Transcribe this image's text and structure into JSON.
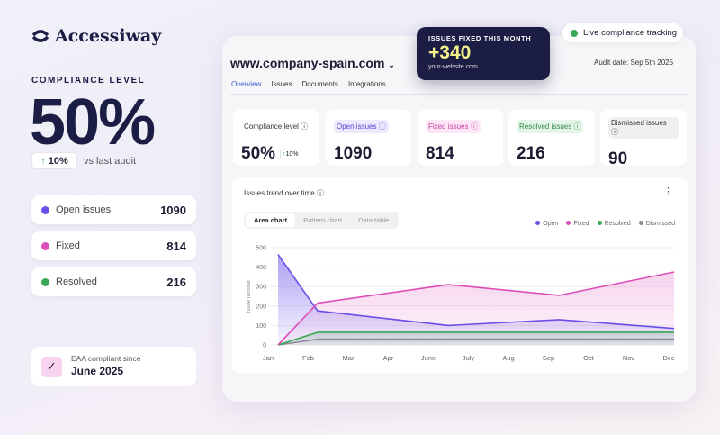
{
  "brand": {
    "name": "Accessiway"
  },
  "left": {
    "compliance_label": "COMPLIANCE LEVEL",
    "compliance_value": "50%",
    "delta": "10%",
    "delta_caption": "vs last audit",
    "items": [
      {
        "label": "Open issues",
        "value": "1090",
        "color": "#6a4ee8"
      },
      {
        "label": "Fixed",
        "value": "814",
        "color": "#dd4fb8"
      },
      {
        "label": "Resolved",
        "value": "216",
        "color": "#3aa757"
      }
    ],
    "eaa": {
      "caption": "EAA compliant since",
      "date": "June 2025"
    }
  },
  "highlight": {
    "title": "ISSUES FIXED THIS MONTH",
    "value": "+340",
    "site": "your-website.com"
  },
  "live": {
    "label": "Live compliance tracking"
  },
  "dashboard": {
    "site": "www.company-spain.com",
    "audit_date": "Audit date: Sep 5th 2025",
    "tabs": [
      "Overview",
      "Issues",
      "Documents",
      "Integrations"
    ],
    "stats": [
      {
        "label": "Compliance level",
        "value": "50%",
        "badge": "10%",
        "bg": "transparent",
        "fg": "#333"
      },
      {
        "label": "Open issues",
        "value": "1090",
        "bg": "#eee9fc",
        "fg": "#5b3fd6"
      },
      {
        "label": "Fixed issues",
        "value": "814",
        "bg": "#fde6f6",
        "fg": "#c93ba6"
      },
      {
        "label": "Resolved issues",
        "value": "216",
        "bg": "#e6f5ea",
        "fg": "#2e8a47"
      },
      {
        "label": "Dismissed issues",
        "value": "90",
        "bg": "#f0f0f3",
        "fg": "#333"
      }
    ],
    "chart_title": "Issues trend over time",
    "chart_tabs": [
      "Area chart",
      "Pattern chart",
      "Data table"
    ]
  },
  "chart_data": {
    "type": "area",
    "ylabel": "Issue number",
    "ylim": [
      0,
      500
    ],
    "yticks": [
      "0",
      "100",
      "200",
      "300",
      "400",
      "500"
    ],
    "categories": [
      "Jan",
      "Feb",
      "Mar",
      "Apr",
      "June",
      "July",
      "Aug",
      "Sep",
      "Oct",
      "Nov",
      "Dec"
    ],
    "x": [
      0,
      1,
      4.3,
      7.1,
      10
    ],
    "grid": true,
    "legend": "top-right",
    "series": [
      {
        "name": "Open",
        "color": "#6a4ee8",
        "values": [
          465,
          175,
          100,
          130,
          85
        ]
      },
      {
        "name": "Fixed",
        "color": "#dd4fb8",
        "values": [
          0,
          215,
          310,
          255,
          375
        ]
      },
      {
        "name": "Resolved",
        "color": "#3aa757",
        "values": [
          0,
          65,
          65,
          65,
          65
        ]
      },
      {
        "name": "Dismissed",
        "color": "#8a8a94",
        "values": [
          0,
          30,
          30,
          30,
          30
        ]
      }
    ]
  }
}
